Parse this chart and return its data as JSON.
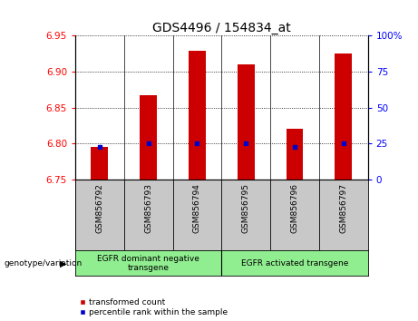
{
  "title": "GDS4496 / 154834_at",
  "samples": [
    "GSM856792",
    "GSM856793",
    "GSM856794",
    "GSM856795",
    "GSM856796",
    "GSM856797"
  ],
  "red_values": [
    6.795,
    6.867,
    6.928,
    6.91,
    6.82,
    6.925
  ],
  "blue_values": [
    6.795,
    6.8,
    6.8,
    6.8,
    6.795,
    6.8
  ],
  "ylim_left": [
    6.75,
    6.95
  ],
  "yticks_left": [
    6.75,
    6.8,
    6.85,
    6.9,
    6.95
  ],
  "ylim_right": [
    0,
    100
  ],
  "yticks_right": [
    0,
    25,
    50,
    75,
    100
  ],
  "yticklabels_right": [
    "0",
    "25",
    "50",
    "75",
    "100%"
  ],
  "bar_bottom": 6.75,
  "bar_color": "#cc0000",
  "dot_color": "#0000cc",
  "group1_label": "EGFR dominant negative\ntransgene",
  "group2_label": "EGFR activated transgene",
  "group1_samples": [
    0,
    1,
    2
  ],
  "group2_samples": [
    3,
    4,
    5
  ],
  "genotype_label": "genotype/variation",
  "legend_red": "transformed count",
  "legend_blue": "percentile rank within the sample",
  "bg_plot": "#ffffff",
  "bg_xlabel": "#c8c8c8",
  "bg_group": "#90ee90",
  "title_fontsize": 10,
  "tick_fontsize": 7.5,
  "small_fontsize": 6.5
}
